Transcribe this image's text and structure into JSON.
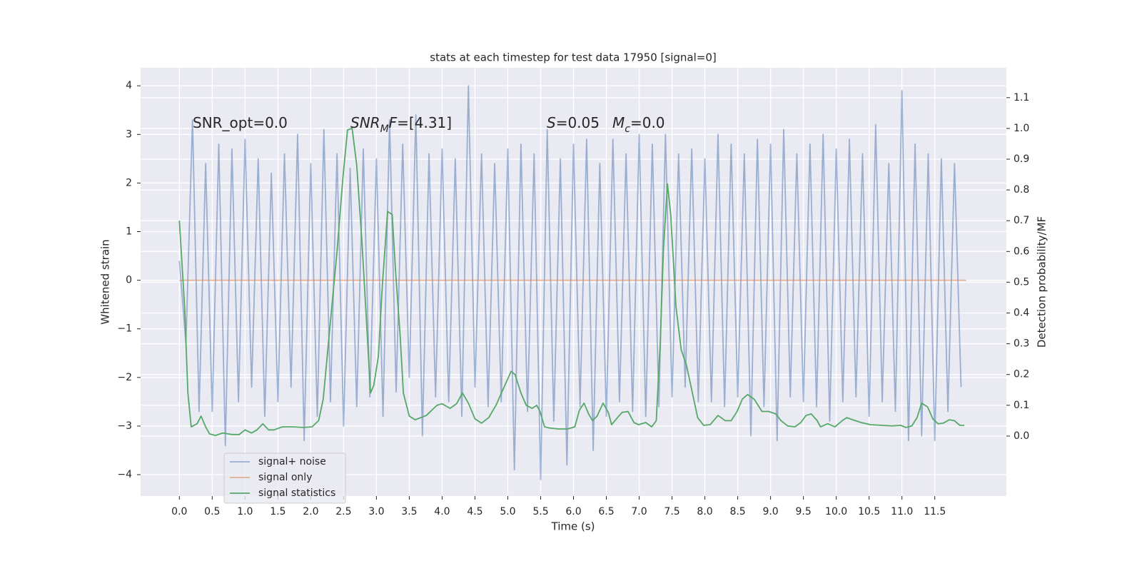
{
  "chart_data": {
    "type": "line",
    "title": "stats at each timestep for test data 17950 [signal=0]",
    "xlabel": "Time (s)",
    "ylabel": "Whitened strain",
    "y2label": "Detection probability/MF",
    "xlim": [
      -0.59,
      12.59
    ],
    "ylim": [
      -4.44,
      4.37
    ],
    "y2lim": [
      -0.195,
      1.197
    ],
    "xticks": [
      {
        "value": 0,
        "label": "0.0"
      },
      0.5,
      {
        "value": 1,
        "label": "1.0"
      },
      1.5,
      {
        "value": 2,
        "label": "2.0"
      },
      2.5,
      {
        "value": 3,
        "label": "3.0"
      },
      3.5,
      {
        "value": 4,
        "label": "4.0"
      },
      4.5,
      {
        "value": 5,
        "label": "5.0"
      },
      5.5,
      {
        "value": 6,
        "label": "6.0"
      },
      6.5,
      {
        "value": 7,
        "label": "7.0"
      },
      7.5,
      {
        "value": 8,
        "label": "8.0"
      },
      8.5,
      {
        "value": 9,
        "label": "9.0"
      },
      9.5,
      {
        "value": 10,
        "label": "10.0"
      },
      10.5,
      {
        "value": 11,
        "label": "11.0"
      },
      11.5
    ],
    "yticks": [
      {
        "value": -4,
        "label": "−4"
      },
      {
        "value": -3,
        "label": "−3"
      },
      {
        "value": -2,
        "label": "−2"
      },
      {
        "value": -1,
        "label": "−1"
      },
      0,
      1,
      2,
      3,
      4
    ],
    "y2ticks": [
      {
        "value": 0,
        "label": "0.0"
      },
      0.1,
      0.2,
      0.3,
      0.4,
      0.5,
      0.6,
      0.7,
      0.8,
      0.9,
      {
        "value": 1,
        "label": "1.0"
      },
      1.1
    ],
    "grid": true,
    "legend": "lower left",
    "annotations": [
      {
        "parts": [
          {
            "text": "SNR_opt=0.0"
          }
        ]
      },
      {
        "parts": [
          {
            "text": "SNR",
            "style": "italic"
          },
          {
            "text": "M",
            "style": "italic-sub"
          },
          {
            "text": "F",
            "style": "italic"
          },
          {
            "text": "=[4.31]"
          }
        ]
      },
      {
        "parts": [
          {
            "text": "S",
            "style": "italic"
          },
          {
            "text": "=0.05"
          }
        ]
      },
      {
        "parts": [
          {
            "text": "M",
            "style": "italic"
          },
          {
            "text": "c",
            "style": "italic-sub"
          },
          {
            "text": "=0.0"
          }
        ]
      }
    ],
    "series": [
      {
        "name": "signal+ noise",
        "color": "#4c72b0",
        "opacity": 0.5,
        "x": [
          0.0,
          0.1,
          0.2,
          0.3,
          0.4,
          0.5,
          0.6,
          0.7,
          0.8,
          0.9,
          1.0,
          1.1,
          1.2,
          1.3,
          1.4,
          1.5,
          1.6,
          1.7,
          1.8,
          1.9,
          2.0,
          2.1,
          2.2,
          2.3,
          2.4,
          2.5,
          2.6,
          2.7,
          2.8,
          2.9,
          3.0,
          3.1,
          3.2,
          3.3,
          3.4,
          3.5,
          3.6,
          3.7,
          3.8,
          3.9,
          4.0,
          4.1,
          4.2,
          4.3,
          4.4,
          4.5,
          4.6,
          4.7,
          4.8,
          4.9,
          5.0,
          5.1,
          5.2,
          5.3,
          5.4,
          5.5,
          5.6,
          5.7,
          5.8,
          5.9,
          6.0,
          6.1,
          6.2,
          6.3,
          6.4,
          6.5,
          6.6,
          6.7,
          6.8,
          6.9,
          7.0,
          7.1,
          7.2,
          7.3,
          7.4,
          7.5,
          7.6,
          7.7,
          7.8,
          7.9,
          8.0,
          8.1,
          8.2,
          8.3,
          8.4,
          8.5,
          8.6,
          8.7,
          8.8,
          8.9,
          9.0,
          9.1,
          9.2,
          9.3,
          9.4,
          9.5,
          9.6,
          9.7,
          9.8,
          9.9,
          10.0,
          10.1,
          10.2,
          10.3,
          10.4,
          10.5,
          10.6,
          10.7,
          10.8,
          10.9,
          11.0,
          11.1,
          11.2,
          11.3,
          11.4,
          11.5,
          11.6,
          11.7,
          11.8,
          11.9
        ],
        "values": [
          0.4,
          -1.3,
          3.3,
          -2.7,
          2.4,
          -2.7,
          2.8,
          -3.4,
          2.7,
          -2.5,
          2.9,
          -2.2,
          2.5,
          -2.8,
          2.2,
          -2.5,
          2.6,
          -2.2,
          3.0,
          -3.3,
          2.4,
          -2.8,
          3.1,
          -2.5,
          2.6,
          -3.0,
          2.3,
          -2.6,
          2.7,
          -2.4,
          2.5,
          -2.8,
          3.3,
          -2.3,
          2.8,
          -2.0,
          3.4,
          -3.2,
          2.6,
          -2.4,
          2.7,
          -2.5,
          2.5,
          -2.8,
          4.0,
          -2.2,
          2.6,
          -2.6,
          2.4,
          -2.5,
          2.7,
          -3.9,
          2.8,
          -2.7,
          2.6,
          -4.1,
          3.1,
          -2.9,
          2.5,
          -3.8,
          2.8,
          -2.6,
          2.9,
          -3.5,
          2.4,
          -2.8,
          2.9,
          -2.5,
          2.6,
          -2.7,
          3.0,
          -2.8,
          2.8,
          -2.6,
          3.0,
          -2.4,
          2.6,
          -2.2,
          2.7,
          -2.5,
          2.5,
          -2.5,
          3.0,
          -2.6,
          2.8,
          -2.4,
          2.6,
          -3.2,
          2.9,
          -2.6,
          2.8,
          -3.3,
          3.1,
          -2.4,
          2.6,
          -2.5,
          2.8,
          -2.6,
          3.0,
          -2.9,
          2.7,
          -2.5,
          2.9,
          -2.4,
          2.6,
          -2.8,
          3.2,
          -2.5,
          2.4,
          -2.7,
          3.9,
          -3.3,
          2.8,
          -3.2,
          2.6,
          -3.3,
          2.5,
          -2.7,
          2.4,
          -2.2
        ]
      },
      {
        "name": "signal only",
        "color": "#dd8452",
        "opacity": 0.6,
        "x": [
          0.0,
          11.98
        ],
        "values": [
          0,
          0
        ]
      },
      {
        "name": "signal statistics",
        "color": "#55a868",
        "opacity": 1,
        "axis": "y2",
        "x": [
          0.0,
          0.08,
          0.13,
          0.18,
          0.27,
          0.33,
          0.4,
          0.46,
          0.55,
          0.66,
          0.8,
          0.91,
          1.0,
          1.1,
          1.18,
          1.27,
          1.36,
          1.44,
          1.57,
          1.73,
          1.89,
          2.02,
          2.12,
          2.19,
          2.29,
          2.4,
          2.49,
          2.56,
          2.63,
          2.7,
          2.78,
          2.86,
          2.91,
          2.96,
          3.03,
          3.09,
          3.17,
          3.24,
          3.29,
          3.36,
          3.41,
          3.5,
          3.59,
          3.76,
          3.92,
          4.0,
          4.12,
          4.22,
          4.31,
          4.4,
          4.5,
          4.6,
          4.71,
          4.82,
          4.93,
          5.05,
          5.11,
          5.2,
          5.28,
          5.37,
          5.44,
          5.49,
          5.56,
          5.64,
          5.77,
          5.91,
          6.02,
          6.09,
          6.16,
          6.23,
          6.29,
          6.36,
          6.45,
          6.53,
          6.58,
          6.67,
          6.74,
          6.83,
          6.92,
          6.99,
          7.1,
          7.19,
          7.26,
          7.32,
          7.37,
          7.43,
          7.48,
          7.56,
          7.64,
          7.72,
          7.8,
          7.89,
          7.98,
          8.08,
          8.2,
          8.31,
          8.4,
          8.49,
          8.57,
          8.65,
          8.75,
          8.87,
          8.97,
          9.08,
          9.16,
          9.26,
          9.37,
          9.46,
          9.54,
          9.62,
          9.71,
          9.76,
          9.87,
          9.98,
          10.09,
          10.16,
          10.25,
          10.38,
          10.52,
          10.68,
          10.85,
          10.98,
          11.06,
          11.15,
          11.23,
          11.3,
          11.39,
          11.47,
          11.55,
          11.63,
          11.72,
          11.8,
          11.88,
          11.95
        ],
        "values": [
          0.7,
          0.42,
          0.14,
          0.03,
          0.04,
          0.065,
          0.03,
          0.007,
          0.002,
          0.01,
          0.005,
          0.005,
          0.02,
          0.01,
          0.02,
          0.04,
          0.02,
          0.02,
          0.03,
          0.03,
          0.028,
          0.03,
          0.05,
          0.12,
          0.35,
          0.6,
          0.84,
          0.995,
          1.0,
          0.88,
          0.63,
          0.33,
          0.14,
          0.165,
          0.26,
          0.49,
          0.73,
          0.72,
          0.54,
          0.33,
          0.14,
          0.065,
          0.053,
          0.067,
          0.1,
          0.105,
          0.09,
          0.105,
          0.14,
          0.107,
          0.056,
          0.042,
          0.06,
          0.1,
          0.153,
          0.21,
          0.2,
          0.14,
          0.1,
          0.09,
          0.1,
          0.08,
          0.03,
          0.026,
          0.023,
          0.023,
          0.03,
          0.084,
          0.107,
          0.072,
          0.05,
          0.065,
          0.107,
          0.077,
          0.037,
          0.06,
          0.077,
          0.08,
          0.044,
          0.037,
          0.044,
          0.03,
          0.05,
          0.3,
          0.61,
          0.82,
          0.72,
          0.42,
          0.28,
          0.23,
          0.15,
          0.06,
          0.035,
          0.037,
          0.067,
          0.05,
          0.05,
          0.08,
          0.12,
          0.135,
          0.12,
          0.08,
          0.08,
          0.072,
          0.05,
          0.033,
          0.03,
          0.044,
          0.067,
          0.072,
          0.05,
          0.03,
          0.04,
          0.03,
          0.05,
          0.06,
          0.053,
          0.044,
          0.037,
          0.035,
          0.033,
          0.035,
          0.028,
          0.033,
          0.06,
          0.107,
          0.095,
          0.056,
          0.04,
          0.042,
          0.053,
          0.05,
          0.035,
          0.035
        ]
      }
    ]
  }
}
